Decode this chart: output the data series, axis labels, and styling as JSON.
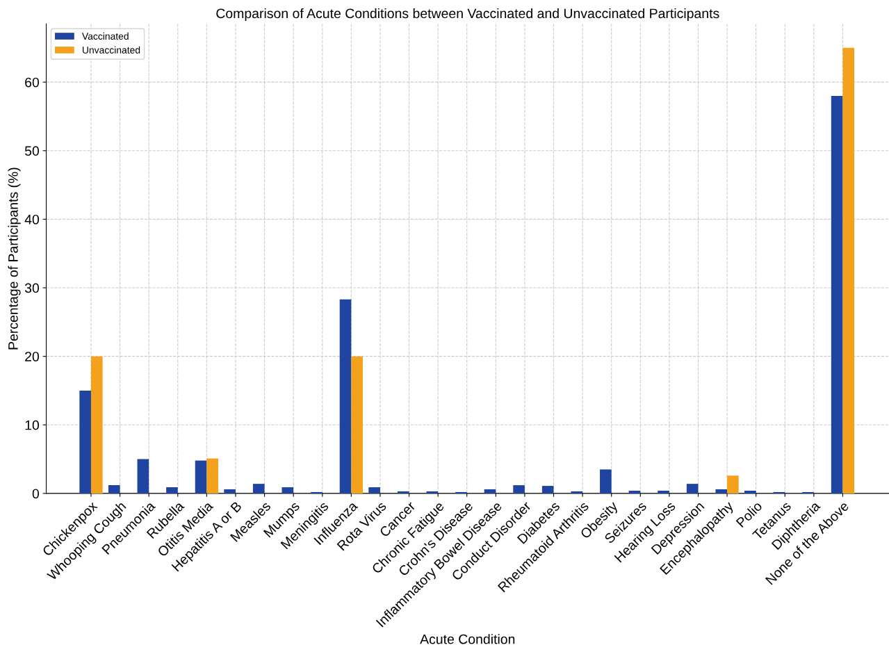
{
  "chart_data": {
    "type": "bar",
    "title": "Comparison of Acute Conditions between Vaccinated and Unvaccinated Participants",
    "xlabel": "Acute Condition",
    "ylabel": "Percentage of Participants (%)",
    "categories": [
      "Chickenpox",
      "Whooping Cough",
      "Pneumonia",
      "Rubella",
      "Otitis Media",
      "Hepatitis A or B",
      "Measles",
      "Mumps",
      "Meningitis",
      "Influenza",
      "Rota Virus",
      "Cancer",
      "Chronic Fatigue",
      "Crohn's Disease",
      "Inflammatory Bowel Disease",
      "Conduct Disorder",
      "Diabetes",
      "Rheumatoid Arthritis",
      "Obesity",
      "Seizures",
      "Hearing Loss",
      "Depression",
      "Encephalopathy",
      "Polio",
      "Tetanus",
      "Diphtheria",
      "None of the Above"
    ],
    "series": [
      {
        "name": "Vaccinated",
        "color": "#1f45a0",
        "values": [
          15,
          1.2,
          5.0,
          0.9,
          4.8,
          0.6,
          1.4,
          0.9,
          0.2,
          28.3,
          0.9,
          0.3,
          0.3,
          0.2,
          0.6,
          1.2,
          1.1,
          0.3,
          3.5,
          0.4,
          0.4,
          1.4,
          0.6,
          0.4,
          0.2,
          0.2,
          58
        ]
      },
      {
        "name": "Unvaccinated",
        "color": "#f4a21e",
        "values": [
          20,
          0,
          0,
          0,
          5.1,
          0,
          0,
          0,
          0,
          20,
          0,
          0,
          0,
          0,
          0,
          0,
          0,
          0,
          0,
          0,
          0,
          0,
          2.6,
          0,
          0,
          0,
          65
        ]
      }
    ],
    "ylim": [
      0,
      68.5
    ],
    "yticks": [
      0,
      10,
      20,
      30,
      40,
      50,
      60
    ],
    "grid": true,
    "legend": "top left"
  }
}
